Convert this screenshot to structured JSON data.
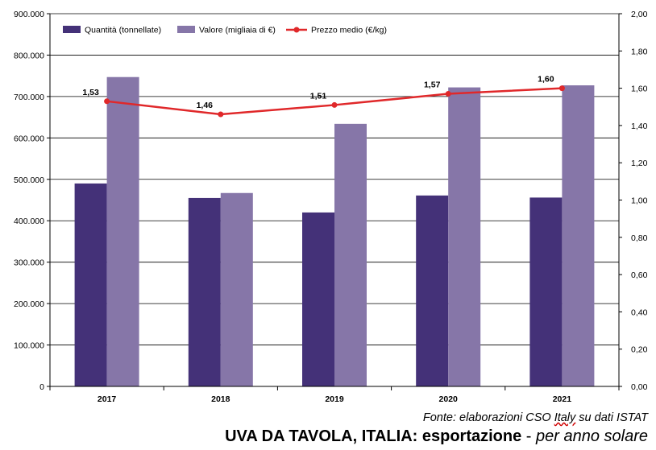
{
  "chart_data": {
    "type": "bar",
    "categories": [
      "2017",
      "2018",
      "2019",
      "2020",
      "2021"
    ],
    "series": [
      {
        "name": "Quantità (tonnellate)",
        "type": "bar",
        "axis": "left",
        "color": "#443178",
        "values": [
          490000,
          455000,
          420000,
          461000,
          456000
        ]
      },
      {
        "name": "Valore (migliaia di €)",
        "type": "bar",
        "axis": "left",
        "color": "#8676a8",
        "values": [
          747000,
          467000,
          634000,
          722000,
          727000
        ]
      },
      {
        "name": "Prezzo medio (€/kg)",
        "type": "line",
        "axis": "right",
        "color": "#e0282a",
        "values": [
          1.53,
          1.46,
          1.51,
          1.57,
          1.6
        ],
        "labels": [
          "1,53",
          "1,46",
          "1,51",
          "1,57",
          "1,60"
        ]
      }
    ],
    "ylim_left": [
      0,
      900000
    ],
    "ylim_right": [
      0,
      2.0
    ],
    "left_ticks": [
      "0",
      "100.000",
      "200.000",
      "300.000",
      "400.000",
      "500.000",
      "600.000",
      "700.000",
      "800.000",
      "900.000"
    ],
    "right_ticks": [
      "0,00",
      "0,20",
      "0,40",
      "0,60",
      "0,80",
      "1,00",
      "1,20",
      "1,40",
      "1,60",
      "1,80",
      "2,00"
    ],
    "legend_position": "top-left",
    "grid": "horizontal"
  },
  "source": {
    "prefix": "Fonte: elaborazioni CSO ",
    "underlined": "Italy",
    "suffix": " su dati ISTAT"
  },
  "title": {
    "bold": "UVA DA TAVOLA, ITALIA: esportazione",
    "sep": " - ",
    "italic": "per anno solare"
  }
}
